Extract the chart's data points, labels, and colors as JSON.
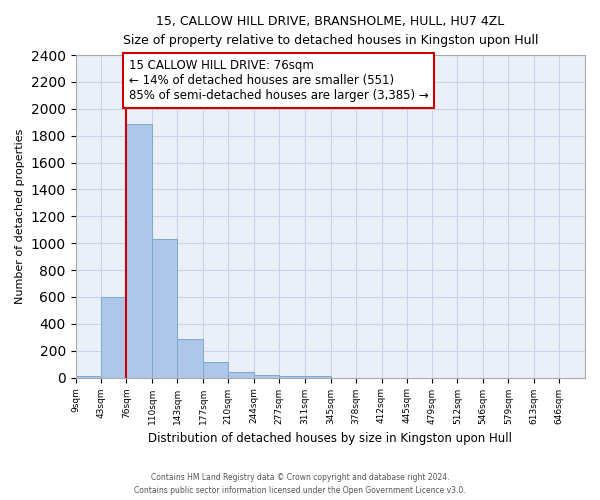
{
  "title1": "15, CALLOW HILL DRIVE, BRANSHOLME, HULL, HU7 4ZL",
  "title2": "Size of property relative to detached houses in Kingston upon Hull",
  "xlabel": "Distribution of detached houses by size in Kingston upon Hull",
  "ylabel": "Number of detached properties",
  "footer1": "Contains HM Land Registry data © Crown copyright and database right 2024.",
  "footer2": "Contains public sector information licensed under the Open Government Licence v3.0.",
  "annotation_title": "15 CALLOW HILL DRIVE: 76sqm",
  "annotation_line1": "← 14% of detached houses are smaller (551)",
  "annotation_line2": "85% of semi-detached houses are larger (3,385) →",
  "property_size": 76,
  "bar_edges": [
    9,
    43,
    76,
    110,
    143,
    177,
    210,
    244,
    277,
    311,
    345,
    378,
    412,
    445,
    479,
    512,
    546,
    579,
    613,
    646,
    680
  ],
  "bar_heights": [
    15,
    600,
    1890,
    1030,
    285,
    115,
    45,
    20,
    15,
    15,
    0,
    0,
    0,
    0,
    0,
    0,
    0,
    0,
    0,
    0
  ],
  "bar_color": "#aec6e8",
  "bar_edge_color": "#7aaad0",
  "vline_color": "#cc0000",
  "vline_x": 76,
  "annotation_box_color": "#cc0000",
  "grid_color": "#c8d4e8",
  "background_color": "#eaeff8",
  "ylim": [
    0,
    2400
  ],
  "yticks": [
    0,
    200,
    400,
    600,
    800,
    1000,
    1200,
    1400,
    1600,
    1800,
    2000,
    2200,
    2400
  ]
}
